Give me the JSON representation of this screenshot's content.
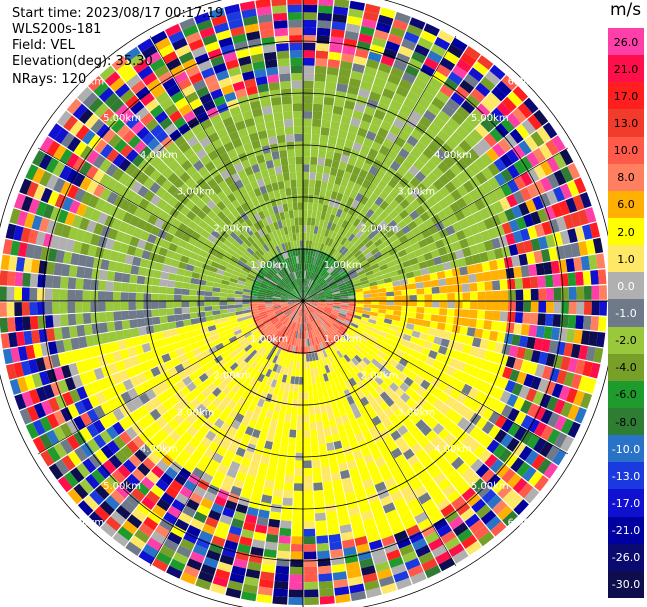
{
  "info": {
    "start_time": "Start time: 2023/08/17 00:17:19",
    "station": "WLS200s-181",
    "field": "Field: VEL",
    "elevation": "Elevation(deg): 35.30",
    "nrays": "NRays: 120"
  },
  "chart_data": {
    "type": "heatmap",
    "projection": "polar-ppi",
    "field": "VEL",
    "nrays": 120,
    "elevation_deg": 35.3,
    "unit": "m/s",
    "range_rings_km": [
      1,
      2,
      3,
      4,
      5,
      6
    ],
    "ring_labels": [
      "1.00km",
      "2.00km",
      "3.00km",
      "4.00km",
      "5.00km",
      "6.00km"
    ],
    "colorbar": {
      "label": "m/s",
      "min": -30,
      "max": 30,
      "ticks": [
        "26.0",
        "21.0",
        "17.0",
        "13.0",
        "10.0",
        "8.0",
        "6.0",
        "2.0",
        "1.0",
        "0.0",
        "-1.0",
        "-2.0",
        "-4.0",
        "-6.0",
        "-8.0",
        "-10.0",
        "-13.0",
        "-17.0",
        "-21.0",
        "-26.0",
        "-30.0"
      ],
      "colors": [
        "#ff3fa8",
        "#ff0f4a",
        "#ff1f1f",
        "#f33b2c",
        "#ff5a4a",
        "#ff8060",
        "#ffb000",
        "#ffff00",
        "#ffe866",
        "#b0b0b0",
        "#6e7a8a",
        "#9ac83c",
        "#78a028",
        "#1f9a2c",
        "#2e7d32",
        "#2872c8",
        "#1a3ae0",
        "#1010d0",
        "#0000a0",
        "#0a0a70",
        "#0e0e4e"
      ]
    }
  }
}
